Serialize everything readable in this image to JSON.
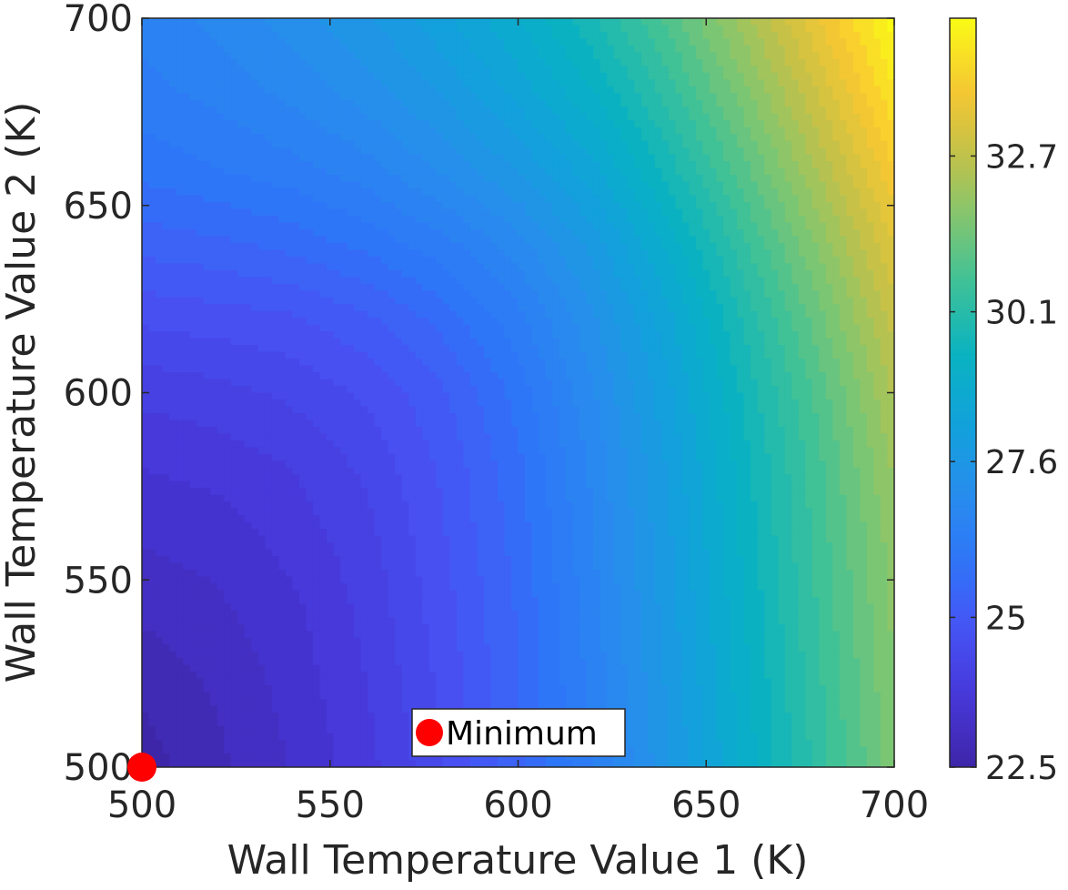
{
  "chart_data": {
    "type": "heatmap",
    "subtype": "filled-contour",
    "title": "",
    "xlabel": "Wall Temperature Value 1 (K)",
    "ylabel": "Wall Temperature Value 2 (K)",
    "xlim": [
      500,
      700
    ],
    "ylim": [
      500,
      700
    ],
    "x_ticks": [
      500,
      550,
      600,
      650,
      700
    ],
    "y_ticks": [
      500,
      550,
      600,
      650,
      700
    ],
    "x_tick_labels": [
      "500",
      "550",
      "600",
      "650",
      "700"
    ],
    "y_tick_labels": [
      "500",
      "550",
      "600",
      "650",
      "700"
    ],
    "colormap": "parula",
    "colorbar": {
      "limits": [
        22.5,
        35.0
      ],
      "ticks": [
        22.5,
        25,
        27.6,
        30.1,
        32.7
      ],
      "tick_labels": [
        "22.5",
        "25",
        "27.6",
        "30.1",
        "32.7"
      ]
    },
    "contour_levels": 40,
    "x": [
      500,
      520,
      540,
      560,
      580,
      600,
      620,
      640,
      660,
      680,
      700
    ],
    "y": [
      500,
      520,
      540,
      560,
      580,
      600,
      620,
      640,
      660,
      680,
      700
    ],
    "z": [
      [
        22.5,
        22.9,
        23.3,
        23.8,
        24.5,
        25.4,
        26.4,
        27.6,
        29.0,
        30.3,
        31.6
      ],
      [
        22.7,
        23.0,
        23.4,
        23.9,
        24.6,
        25.5,
        26.5,
        27.7,
        29.1,
        30.4,
        31.7
      ],
      [
        23.0,
        23.2,
        23.5,
        24.0,
        24.7,
        25.5,
        26.6,
        27.8,
        29.2,
        30.5,
        31.8
      ],
      [
        23.3,
        23.4,
        23.7,
        24.1,
        24.8,
        25.6,
        26.7,
        27.9,
        29.3,
        30.6,
        31.9
      ],
      [
        23.6,
        23.7,
        23.9,
        24.3,
        24.9,
        25.7,
        26.8,
        28.0,
        29.4,
        30.7,
        32.1
      ],
      [
        24.0,
        24.1,
        24.3,
        24.6,
        25.1,
        25.9,
        27.0,
        28.2,
        29.6,
        30.9,
        32.4
      ],
      [
        24.6,
        24.7,
        24.8,
        25.1,
        25.6,
        26.3,
        27.3,
        28.5,
        29.9,
        31.3,
        32.8
      ],
      [
        25.3,
        25.4,
        25.6,
        25.9,
        26.3,
        26.9,
        27.8,
        29.0,
        30.4,
        31.8,
        33.3
      ],
      [
        25.9,
        26.1,
        26.3,
        26.6,
        27.1,
        27.7,
        28.5,
        29.7,
        31.0,
        32.4,
        33.9
      ],
      [
        26.3,
        26.5,
        26.8,
        27.2,
        27.7,
        28.4,
        29.2,
        30.3,
        31.6,
        33.0,
        34.5
      ],
      [
        26.5,
        26.8,
        27.2,
        27.6,
        28.2,
        28.9,
        29.8,
        30.9,
        32.2,
        33.6,
        35.0
      ]
    ],
    "annotations": [
      {
        "type": "marker",
        "label": "Minimum",
        "x": 500,
        "y": 500,
        "color": "#ff0000"
      }
    ],
    "legend": {
      "entries": [
        "Minimum"
      ],
      "placement": "bottom-center inside axes"
    }
  }
}
